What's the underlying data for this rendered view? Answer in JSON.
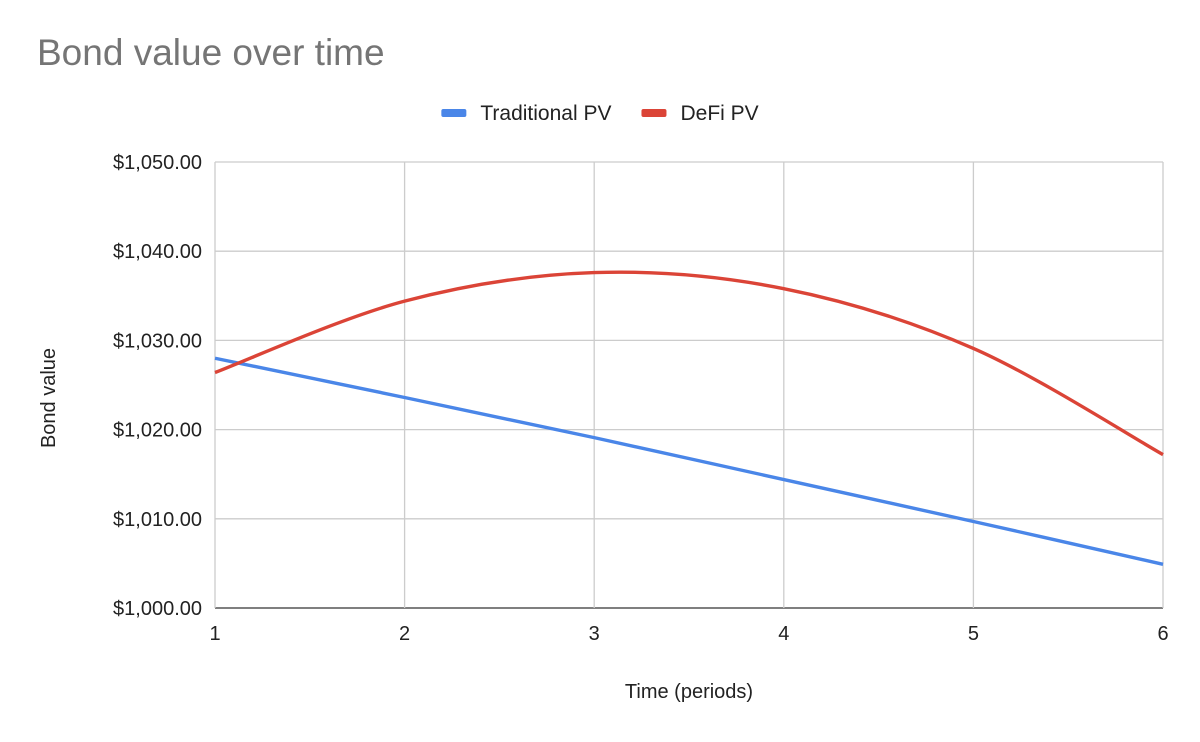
{
  "chart_data": {
    "type": "line",
    "title": "Bond value over time",
    "xlabel": "Time (periods)",
    "ylabel": "Bond value",
    "xlim": [
      1,
      6
    ],
    "ylim": [
      1000,
      1050
    ],
    "x_ticks": [
      "1",
      "2",
      "3",
      "4",
      "5",
      "6"
    ],
    "y_ticks": [
      "$1,000.00",
      "$1,010.00",
      "$1,020.00",
      "$1,030.00",
      "$1,040.00",
      "$1,050.00"
    ],
    "grid": true,
    "legend_position": "top",
    "smooth": true,
    "x": [
      1,
      2,
      3,
      4,
      5,
      6
    ],
    "series": [
      {
        "name": "Traditional PV",
        "color": "#4a86e8",
        "values": [
          1028.0,
          1023.6,
          1019.1,
          1014.4,
          1009.7,
          1004.9
        ]
      },
      {
        "name": "DeFi PV",
        "color": "#db4437",
        "values": [
          1026.4,
          1034.4,
          1037.6,
          1035.8,
          1029.1,
          1017.2
        ]
      }
    ]
  }
}
